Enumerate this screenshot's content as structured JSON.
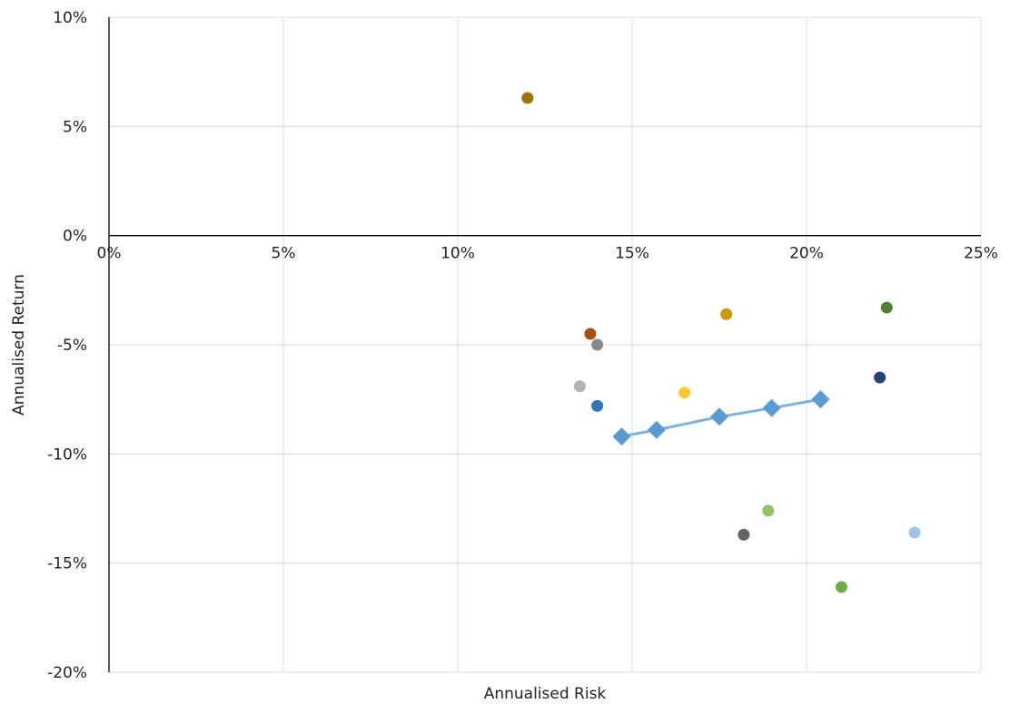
{
  "chart_data": {
    "type": "scatter",
    "xlabel": "Annualised Risk",
    "ylabel": "Annualised Return",
    "xlim": [
      0,
      0.25
    ],
    "ylim": [
      -0.2,
      0.1
    ],
    "x_ticks": [
      0,
      0.05,
      0.1,
      0.15,
      0.2,
      0.25
    ],
    "x_tick_labels": [
      "0%",
      "5%",
      "10%",
      "15%",
      "20%",
      "25%"
    ],
    "y_ticks": [
      0.1,
      0.05,
      0,
      -0.05,
      -0.1,
      -0.15,
      -0.2
    ],
    "y_tick_labels": [
      "10%",
      "5%",
      "0%",
      "-5%",
      "-10%",
      "-15%",
      "-20%"
    ],
    "grid": true,
    "legend": "none",
    "points": [
      {
        "x": 0.12,
        "y": 0.063,
        "color": "#9a7800"
      },
      {
        "x": 0.138,
        "y": -0.045,
        "color": "#a5500f"
      },
      {
        "x": 0.14,
        "y": -0.05,
        "color": "#888888"
      },
      {
        "x": 0.135,
        "y": -0.069,
        "color": "#b4b4b4"
      },
      {
        "x": 0.14,
        "y": -0.078,
        "color": "#2e75b6"
      },
      {
        "x": 0.165,
        "y": -0.072,
        "color": "#ffc62b"
      },
      {
        "x": 0.177,
        "y": -0.036,
        "color": "#c89b05"
      },
      {
        "x": 0.223,
        "y": -0.033,
        "color": "#548235"
      },
      {
        "x": 0.221,
        "y": -0.065,
        "color": "#264478"
      },
      {
        "x": 0.189,
        "y": -0.126,
        "color": "#8fc46a"
      },
      {
        "x": 0.182,
        "y": -0.137,
        "color": "#636363"
      },
      {
        "x": 0.231,
        "y": -0.136,
        "color": "#9dc3e6"
      },
      {
        "x": 0.21,
        "y": -0.161,
        "color": "#70ad47"
      }
    ],
    "series": [
      {
        "marker": "diamond",
        "color": "#5b9bd5",
        "points": [
          {
            "x": 0.147,
            "y": -0.092
          },
          {
            "x": 0.157,
            "y": -0.089
          },
          {
            "x": 0.175,
            "y": -0.083
          },
          {
            "x": 0.19,
            "y": -0.079
          },
          {
            "x": 0.204,
            "y": -0.075
          }
        ]
      }
    ]
  }
}
